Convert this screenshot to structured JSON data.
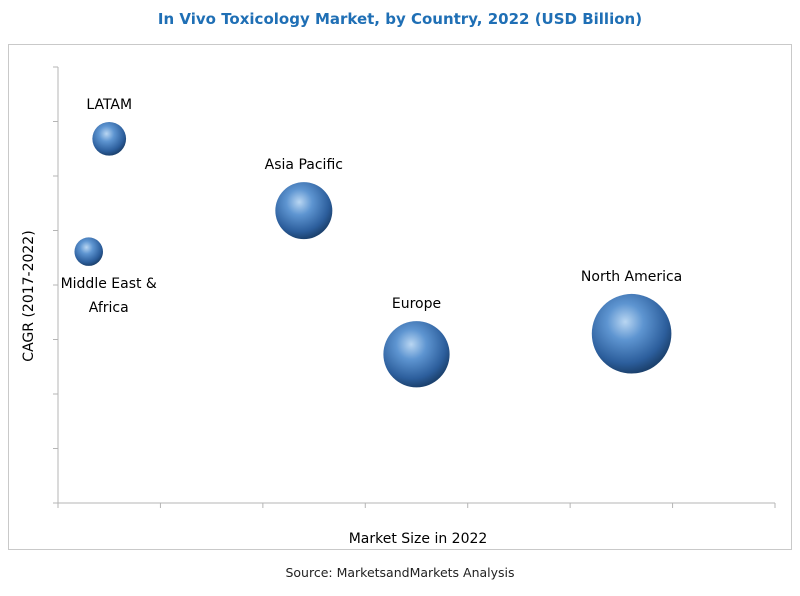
{
  "chart_data": {
    "type": "bubble",
    "title": "In Vivo Toxicology Market, by Country, 2022 (USD Billion)",
    "xlabel": "Market Size in 2022",
    "ylabel": "CAGR (2017-2022)",
    "grid": false,
    "legend": "none",
    "tick_labels_shown": false,
    "points": [
      {
        "label": "LATAM",
        "x": 0.5,
        "y": 7.1,
        "size": 0.35
      },
      {
        "label": "Middle East & Africa",
        "x": 0.3,
        "y": 4.9,
        "size": 0.25
      },
      {
        "label": "Asia Pacific",
        "x": 2.4,
        "y": 5.7,
        "size": 1.0
      },
      {
        "label": "Europe",
        "x": 3.5,
        "y": 2.9,
        "size": 1.35
      },
      {
        "label": "North America",
        "x": 5.6,
        "y": 3.3,
        "size": 1.95
      }
    ],
    "xlim": [
      0,
      7
    ],
    "ylim": [
      0,
      8.5
    ],
    "bubble_color": "#3f78b8"
  },
  "footer": {
    "source": "Source: MarketsandMarkets Analysis"
  }
}
